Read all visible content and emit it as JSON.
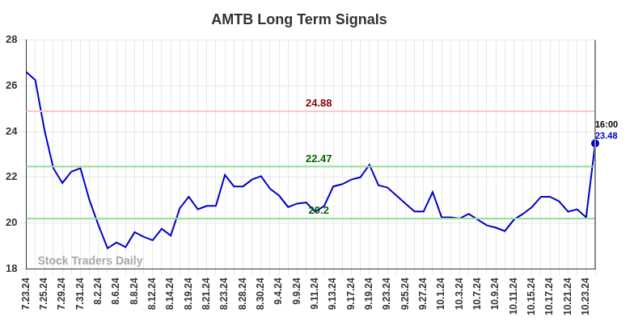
{
  "chart_data": {
    "type": "line",
    "title": "AMTB Long Term Signals",
    "categories": [
      "7.23.24",
      null,
      "7.25.24",
      null,
      "7.29.24",
      null,
      "7.31.24",
      null,
      "8.2.24",
      null,
      "8.6.24",
      null,
      "8.8.24",
      null,
      "8.12.24",
      null,
      "8.14.24",
      null,
      "8.19.24",
      null,
      "8.21.24",
      null,
      "8.23.24",
      null,
      "8.28.24",
      null,
      "8.30.24",
      null,
      "9.4.24",
      null,
      "9.9.24",
      null,
      "9.11.24",
      null,
      "9.13.24",
      null,
      "9.17.24",
      null,
      "9.19.24",
      null,
      "9.23.24",
      null,
      "9.25.24",
      null,
      "9.27.24",
      null,
      "10.1.24",
      null,
      "10.3.24",
      null,
      "10.7.24",
      null,
      "10.9.24",
      null,
      "10.11.24",
      null,
      "10.15.24",
      null,
      "10.17.24",
      null,
      "10.21.24",
      null,
      "10.23.24",
      null
    ],
    "values": [
      26.6,
      26.25,
      24.1,
      22.4,
      21.75,
      22.25,
      22.4,
      21.0,
      19.9,
      18.9,
      19.15,
      18.95,
      19.6,
      19.4,
      19.25,
      19.75,
      19.45,
      20.65,
      21.15,
      20.6,
      20.75,
      20.75,
      22.1,
      21.6,
      21.6,
      21.9,
      22.05,
      21.5,
      21.2,
      20.7,
      20.85,
      20.9,
      20.5,
      20.75,
      21.6,
      21.7,
      21.9,
      22.0,
      22.55,
      21.65,
      21.55,
      21.2,
      20.85,
      20.5,
      20.5,
      21.35,
      20.25,
      20.25,
      20.2,
      20.4,
      20.15,
      19.9,
      19.8,
      19.65,
      20.15,
      20.4,
      20.7,
      21.15,
      21.15,
      20.95,
      20.5,
      20.6,
      20.25,
      23.48
    ],
    "color": "#0000cc",
    "ylim": [
      18,
      28
    ],
    "yticks": [
      18,
      20,
      22,
      24,
      26,
      28
    ],
    "grid": true,
    "horizontal_lines": [
      {
        "value": 24.88,
        "color": "#ffc8c8",
        "label_color": "#8b0000"
      },
      {
        "value": 22.47,
        "color": "#90e090",
        "label_color": "#006400"
      },
      {
        "value": 20.2,
        "color": "#90e090",
        "label_color": "#006400"
      }
    ],
    "last_point_label": "16:00",
    "watermark": "Stock Traders Daily"
  }
}
